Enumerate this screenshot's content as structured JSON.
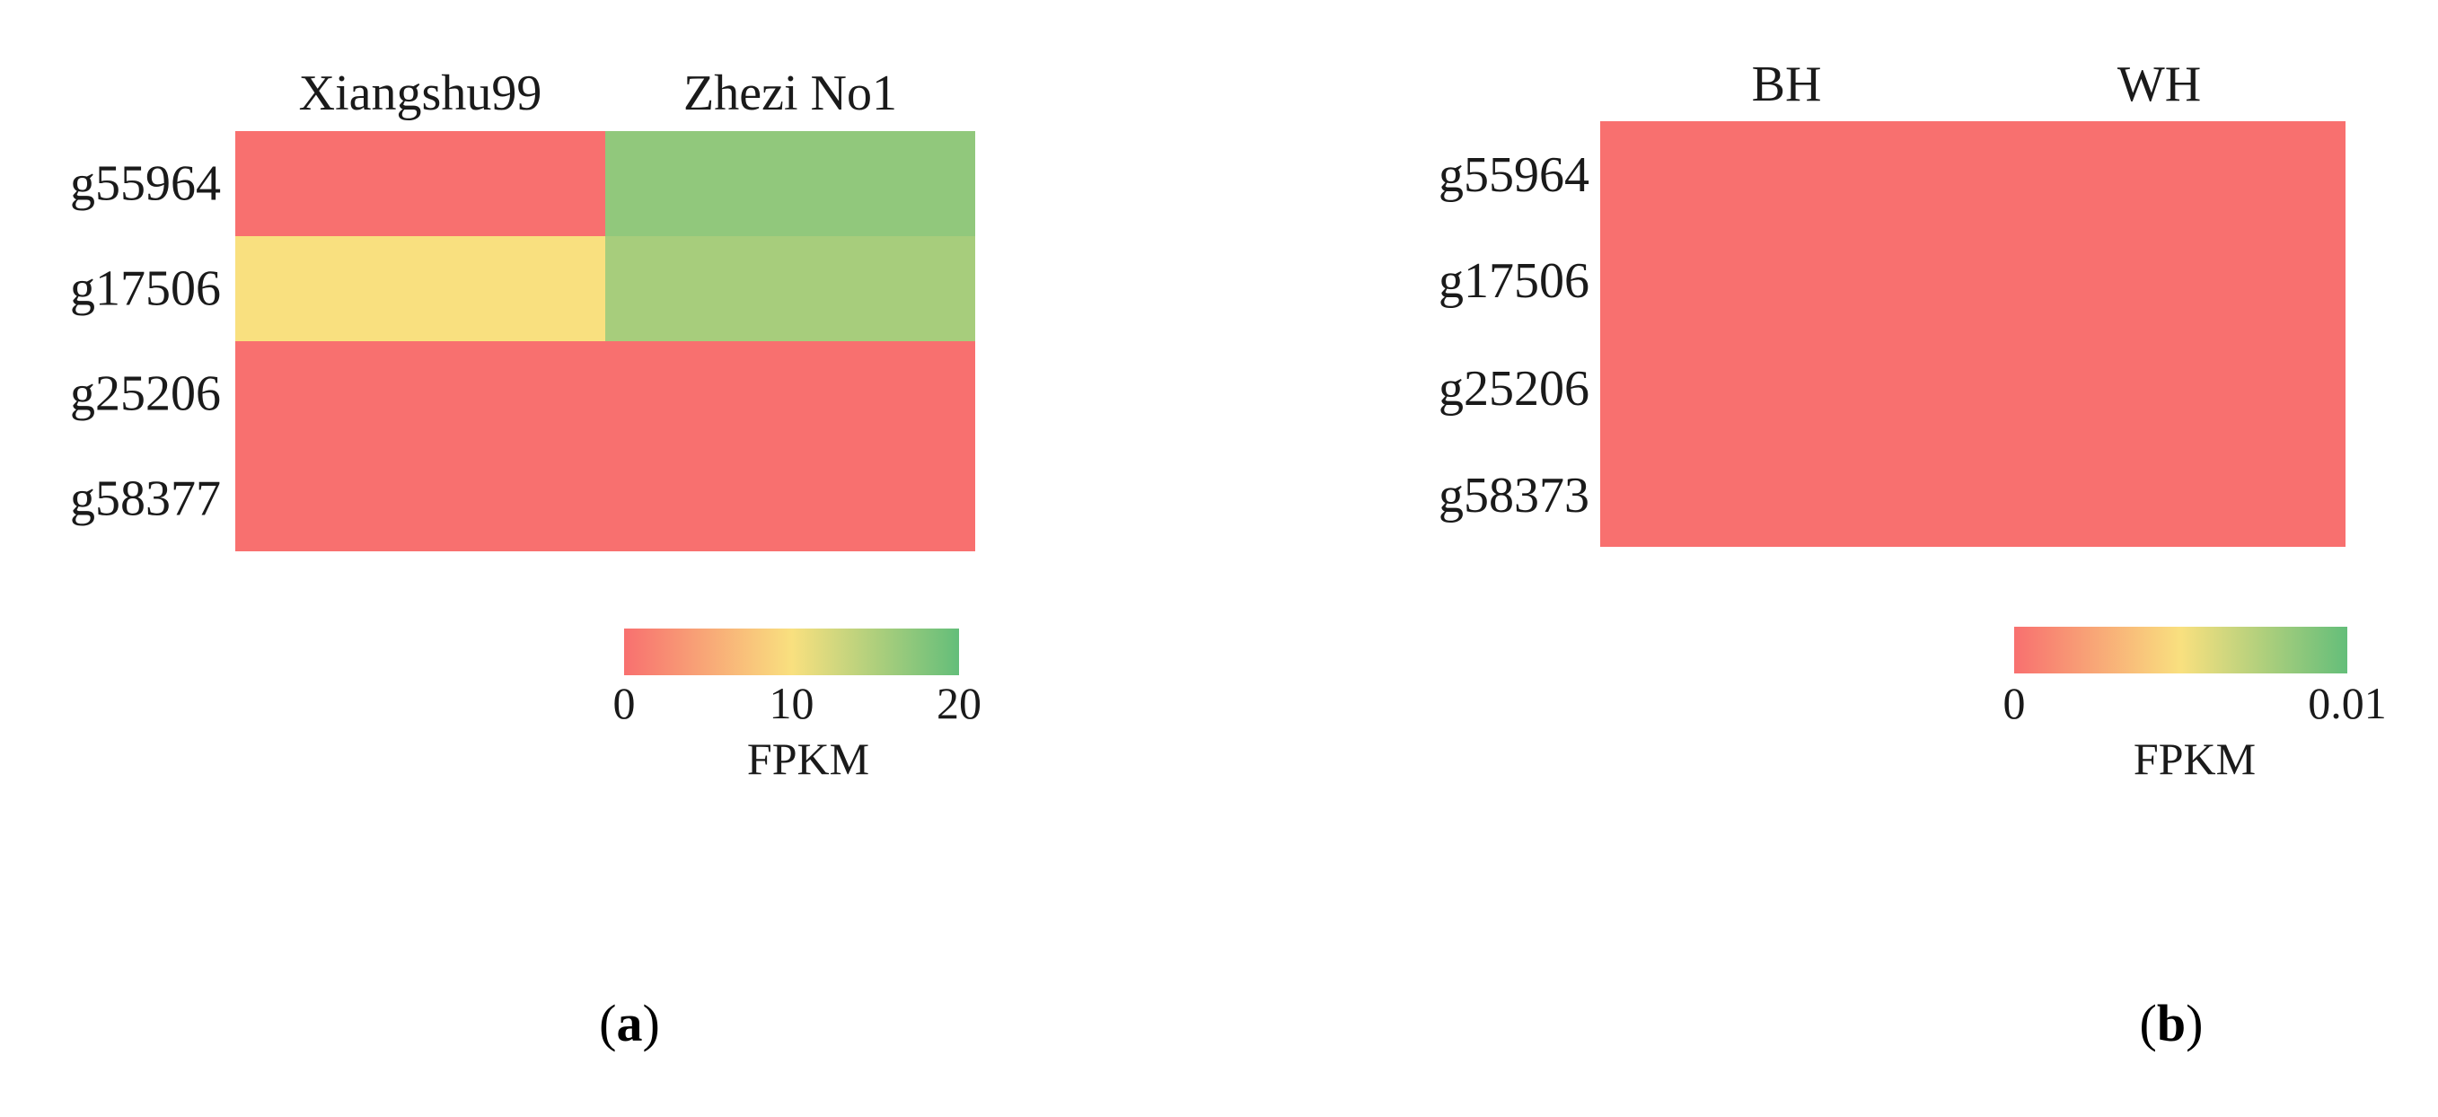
{
  "chart_data": [
    {
      "type": "heatmap",
      "columns": [
        "Xiangshu99",
        "Zhezi No1"
      ],
      "rows": [
        "g55964",
        "g17506",
        "g25206",
        "g58377"
      ],
      "values": [
        [
          0,
          17
        ],
        [
          10,
          15.5
        ],
        [
          0,
          0
        ],
        [
          0,
          0
        ]
      ],
      "colorbar": {
        "label": "FPKM",
        "ticks": [
          "0",
          "10",
          "20"
        ],
        "range": [
          0,
          20
        ],
        "colors": [
          "#f8706f",
          "#f9e07f",
          "#64be7a"
        ]
      },
      "panel_label": {
        "open": "(",
        "letter": "a",
        "close": ")"
      }
    },
    {
      "type": "heatmap",
      "columns": [
        "BH",
        "WH"
      ],
      "rows": [
        "g55964",
        "g17506",
        "g25206",
        "g58373"
      ],
      "values": [
        [
          0,
          0
        ],
        [
          0,
          0
        ],
        [
          0,
          0
        ],
        [
          0,
          0
        ]
      ],
      "colorbar": {
        "label": "FPKM",
        "ticks": [
          "0",
          "0.01"
        ],
        "range": [
          0,
          0.01
        ],
        "colors": [
          "#f8706f",
          "#f9e07f",
          "#64be7a"
        ]
      },
      "panel_label": {
        "open": "(",
        "letter": "b",
        "close": ")"
      }
    }
  ]
}
